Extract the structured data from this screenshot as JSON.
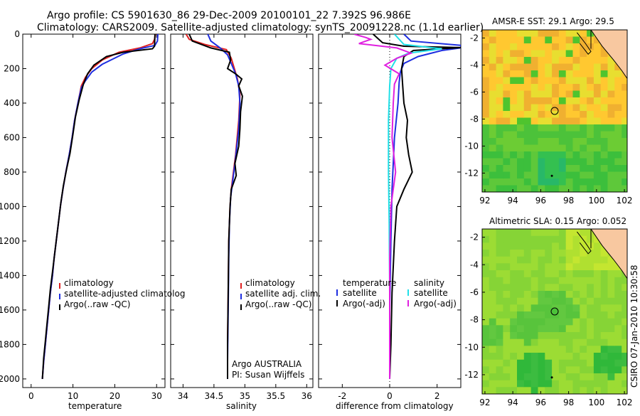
{
  "title_line1": "Argo profile: CS 5901630_86 29-Dec-2009 20100101_22 7.392S 96.986E",
  "title_line2": "Climatology: CARS2009. Satellite-adjusted climatology: synTS_20091228.nc (1.1d earlier)",
  "side_text": "CSIRO 07-Jan-2010 10:30:58",
  "colors": {
    "climatology": "#e02020",
    "satellite": "#1e2ee0",
    "argo": "#000000",
    "salinity_satellite": "#20e0e8",
    "salinity_argo": "#e020e0"
  },
  "chart_data": [
    {
      "type": "line",
      "name": "temperature-profile",
      "xlabel": "temperature",
      "ylabel": "",
      "xlim": [
        -2,
        32
      ],
      "ylim": [
        2050,
        0
      ],
      "xticks": [
        0,
        10,
        20,
        30
      ],
      "yticks": [
        0,
        200,
        400,
        600,
        800,
        1000,
        1200,
        1400,
        1600,
        1800,
        2000
      ],
      "legend_entries": [
        "climatology",
        "satellite-adjusted climatolog",
        "Argo(..raw -QC)"
      ],
      "series": [
        {
          "name": "climatology",
          "color": "#e02020",
          "points": [
            [
              29.7,
              0
            ],
            [
              29.5,
              30
            ],
            [
              29.0,
              55
            ],
            [
              26,
              80
            ],
            [
              21,
              105
            ],
            [
              17,
              150
            ],
            [
              14.5,
              200
            ],
            [
              13,
              250
            ],
            [
              12,
              300
            ],
            [
              11.2,
              400
            ],
            [
              10.4,
              500
            ],
            [
              9.8,
              600
            ],
            [
              9.1,
              700
            ],
            [
              8.3,
              800
            ],
            [
              7.6,
              900
            ],
            [
              7,
              1000
            ],
            [
              6.5,
              1100
            ],
            [
              6,
              1200
            ],
            [
              5.5,
              1300
            ],
            [
              5.1,
              1400
            ],
            [
              4.6,
              1500
            ],
            [
              4.2,
              1600
            ],
            [
              3.8,
              1700
            ],
            [
              3.4,
              1800
            ],
            [
              3,
              1900
            ],
            [
              2.7,
              2000
            ]
          ]
        },
        {
          "name": "satellite-adjusted climatology",
          "color": "#1e2ee0",
          "points": [
            [
              30.3,
              0
            ],
            [
              30.2,
              40
            ],
            [
              29.6,
              65
            ],
            [
              26,
              85
            ],
            [
              22,
              115
            ],
            [
              17,
              175
            ],
            [
              14.5,
              220
            ],
            [
              13,
              270
            ],
            [
              12,
              310
            ],
            [
              11.2,
              400
            ],
            [
              10.4,
              500
            ],
            [
              9.8,
              600
            ],
            [
              9.1,
              700
            ],
            [
              8.3,
              800
            ],
            [
              7.6,
              900
            ],
            [
              7,
              1000
            ],
            [
              6.5,
              1100
            ],
            [
              6,
              1200
            ],
            [
              5.5,
              1300
            ],
            [
              5.1,
              1400
            ],
            [
              4.6,
              1500
            ],
            [
              4.2,
              1600
            ],
            [
              3.8,
              1700
            ],
            [
              3.4,
              1800
            ],
            [
              3,
              1900
            ],
            [
              2.7,
              2000
            ]
          ]
        },
        {
          "name": "Argo(..raw -QC)",
          "color": "#000000",
          "points": [
            [
              29.6,
              0
            ],
            [
              29.5,
              70
            ],
            [
              29.0,
              85
            ],
            [
              22,
              105
            ],
            [
              18,
              130
            ],
            [
              15,
              180
            ],
            [
              13.5,
              230
            ],
            [
              12.5,
              290
            ],
            [
              11.5,
              380
            ],
            [
              10.6,
              480
            ],
            [
              10,
              580
            ],
            [
              9.3,
              690
            ],
            [
              8.5,
              780
            ],
            [
              7.7,
              880
            ],
            [
              7.1,
              980
            ],
            [
              6.6,
              1080
            ],
            [
              6.1,
              1180
            ],
            [
              5.6,
              1280
            ],
            [
              5.1,
              1380
            ],
            [
              4.6,
              1480
            ],
            [
              4.2,
              1580
            ],
            [
              3.8,
              1680
            ],
            [
              3.4,
              1780
            ],
            [
              3,
              1880
            ],
            [
              2.7,
              2000
            ]
          ]
        }
      ]
    },
    {
      "type": "line",
      "name": "salinity-profile",
      "xlabel": "salinity",
      "ylabel": "",
      "xlim": [
        33.8,
        36.1
      ],
      "ylim": [
        2050,
        0
      ],
      "xticks": [
        34,
        34.5,
        35,
        35.5,
        36
      ],
      "legend_entries": [
        "climatology",
        "satellite adj. clim.",
        "Argo(..raw -QC)"
      ],
      "annotations": [
        "Argo AUSTRALIA",
        "PI: Susan Wijffels"
      ],
      "series": [
        {
          "name": "climatology",
          "color": "#e02020",
          "points": [
            [
              34.05,
              0
            ],
            [
              34.1,
              30
            ],
            [
              34.35,
              60
            ],
            [
              34.7,
              90
            ],
            [
              34.78,
              140
            ],
            [
              34.83,
              200
            ],
            [
              34.88,
              260
            ],
            [
              34.92,
              350
            ],
            [
              34.9,
              500
            ],
            [
              34.85,
              700
            ],
            [
              34.78,
              900
            ],
            [
              34.76,
              1000
            ],
            [
              34.74,
              1200
            ],
            [
              34.73,
              1500
            ],
            [
              34.72,
              1800
            ],
            [
              34.72,
              2000
            ]
          ]
        },
        {
          "name": "satellite adj. clim.",
          "color": "#1e2ee0",
          "points": [
            [
              34.4,
              0
            ],
            [
              34.45,
              40
            ],
            [
              34.6,
              80
            ],
            [
              34.72,
              120
            ],
            [
              34.78,
              170
            ],
            [
              34.85,
              230
            ],
            [
              34.9,
              300
            ],
            [
              34.92,
              400
            ],
            [
              34.9,
              550
            ],
            [
              34.84,
              750
            ],
            [
              34.77,
              950
            ],
            [
              34.75,
              1100
            ],
            [
              34.74,
              1300
            ],
            [
              34.73,
              1600
            ],
            [
              34.72,
              1900
            ],
            [
              34.72,
              2000
            ]
          ]
        },
        {
          "name": "Argo(..raw -QC)",
          "color": "#000000",
          "points": [
            [
              34.1,
              0
            ],
            [
              34.15,
              40
            ],
            [
              34.45,
              80
            ],
            [
              34.75,
              105
            ],
            [
              34.77,
              150
            ],
            [
              34.72,
              200
            ],
            [
              34.85,
              230
            ],
            [
              34.95,
              260
            ],
            [
              34.9,
              300
            ],
            [
              34.96,
              360
            ],
            [
              34.93,
              450
            ],
            [
              34.92,
              550
            ],
            [
              34.9,
              650
            ],
            [
              34.84,
              750
            ],
            [
              34.86,
              820
            ],
            [
              34.78,
              900
            ],
            [
              34.76,
              1000
            ],
            [
              34.74,
              1200
            ],
            [
              34.73,
              1500
            ],
            [
              34.72,
              1800
            ],
            [
              34.72,
              2000
            ]
          ]
        }
      ]
    },
    {
      "type": "line",
      "name": "difference-profile",
      "xlabel": "difference from climatology",
      "ylabel": "",
      "xlim": [
        -3,
        3
      ],
      "ylim": [
        2050,
        0
      ],
      "xticks": [
        -2,
        0,
        2
      ],
      "legend_entries": [
        "temperature",
        "satellite",
        "Argo(-adj)",
        "salinity",
        "satellite",
        "Argo(-adj)"
      ],
      "series": [
        {
          "name": "temperature satellite",
          "color": "#1e2ee0",
          "points": [
            [
              0.6,
              0
            ],
            [
              0.9,
              40
            ],
            [
              3,
              65
            ],
            [
              3,
              80
            ],
            [
              2.2,
              95
            ],
            [
              1.2,
              130
            ],
            [
              0.6,
              170
            ],
            [
              0.45,
              220
            ],
            [
              0.4,
              280
            ],
            [
              0.35,
              400
            ],
            [
              0.2,
              600
            ],
            [
              0.1,
              900
            ],
            [
              0.05,
              1200
            ],
            [
              0,
              1600
            ],
            [
              0,
              2000
            ]
          ]
        },
        {
          "name": "temperature Argo(-adj)",
          "color": "#000000",
          "points": [
            [
              -0.7,
              0
            ],
            [
              -0.3,
              50
            ],
            [
              0.6,
              70
            ],
            [
              3,
              78
            ],
            [
              1,
              95
            ],
            [
              0.6,
              130
            ],
            [
              0.5,
              200
            ],
            [
              0.55,
              300
            ],
            [
              0.6,
              400
            ],
            [
              0.75,
              500
            ],
            [
              0.7,
              600
            ],
            [
              0.8,
              700
            ],
            [
              0.95,
              800
            ],
            [
              0.6,
              900
            ],
            [
              0.3,
              1000
            ],
            [
              0.2,
              1200
            ],
            [
              0.1,
              1500
            ],
            [
              0.05,
              1800
            ],
            [
              0,
              2000
            ]
          ]
        },
        {
          "name": "salinity satellite",
          "color": "#20e0e8",
          "points": [
            [
              0.2,
              0
            ],
            [
              0.6,
              60
            ],
            [
              2.2,
              85
            ],
            [
              0.8,
              110
            ],
            [
              0.3,
              140
            ],
            [
              0.05,
              200
            ],
            [
              0,
              300
            ],
            [
              -0.05,
              500
            ],
            [
              -0.05,
              800
            ],
            [
              -0.02,
              1100
            ],
            [
              0,
              1500
            ],
            [
              0,
              2000
            ]
          ]
        },
        {
          "name": "salinity Argo(-adj)",
          "color": "#e020e0",
          "points": [
            [
              -1.5,
              0
            ],
            [
              -1.0,
              20
            ],
            [
              -0.8,
              30
            ],
            [
              -1.3,
              55
            ],
            [
              0.3,
              80
            ],
            [
              0.9,
              110
            ],
            [
              0.3,
              140
            ],
            [
              -0.2,
              180
            ],
            [
              0.4,
              230
            ],
            [
              0.2,
              290
            ],
            [
              0.15,
              400
            ],
            [
              0.1,
              600
            ],
            [
              0.25,
              800
            ],
            [
              0.05,
              1000
            ],
            [
              0,
              1300
            ],
            [
              0,
              1600
            ],
            [
              0,
              2000
            ]
          ]
        }
      ]
    },
    {
      "type": "heatmap",
      "name": "sst-map",
      "title": "AMSR-E SST: 29.1  Argo: 29.5",
      "xlim": [
        91.8,
        102.2
      ],
      "ylim": [
        -13.4,
        -1.4
      ],
      "xticks": [
        92,
        94,
        96,
        98,
        100,
        102
      ],
      "yticks": [
        -2,
        -4,
        -6,
        -8,
        -10,
        -12
      ],
      "marker": {
        "lon": 97,
        "lat": -7.4,
        "style": "open-circle"
      }
    },
    {
      "type": "heatmap",
      "name": "sla-map",
      "title": "Altimetric SLA: 0.15  Argo: 0.052",
      "xlim": [
        91.8,
        102.2
      ],
      "ylim": [
        -13.4,
        -1.4
      ],
      "xticks": [
        92,
        94,
        96,
        98,
        100,
        102
      ],
      "yticks": [
        -2,
        -4,
        -6,
        -8,
        -10,
        -12
      ],
      "marker": {
        "lon": 97,
        "lat": -7.4,
        "style": "filled-circle"
      }
    }
  ]
}
